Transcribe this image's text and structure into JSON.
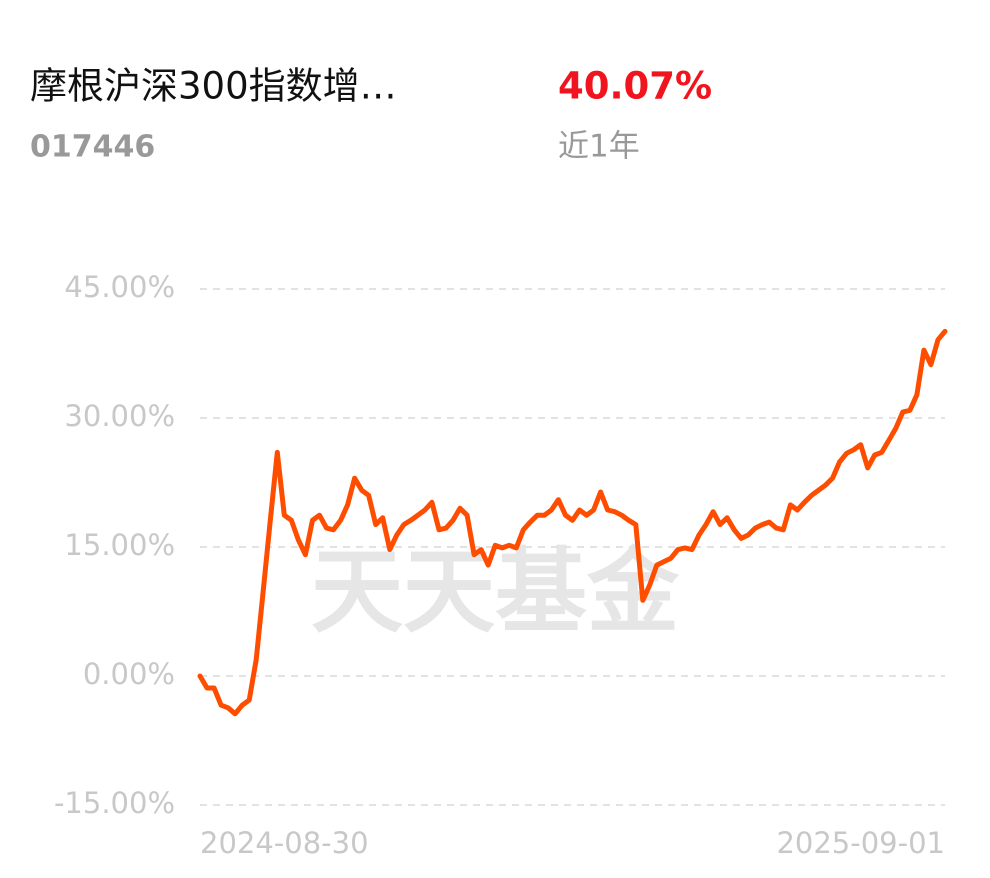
{
  "chart_data": {
    "type": "line",
    "title": "摩根沪深300指数增…",
    "code": "017446",
    "summary": {
      "value": 40.07,
      "label": "40.07%",
      "period": "近1年"
    },
    "watermark": "天天基金",
    "categories": [
      "2024-08-30",
      null,
      null,
      null,
      null,
      null,
      null,
      null,
      null,
      null,
      null,
      null,
      null,
      null,
      null,
      null,
      null,
      null,
      null,
      null,
      null,
      null,
      null,
      null,
      null,
      null,
      null,
      null,
      null,
      null,
      null,
      null,
      null,
      null,
      null,
      null,
      null,
      null,
      null,
      null,
      null,
      null,
      null,
      null,
      null,
      null,
      null,
      null,
      null,
      null,
      null,
      null,
      null,
      null,
      null,
      null,
      null,
      null,
      null,
      null,
      null,
      null,
      null,
      null,
      null,
      null,
      null,
      null,
      null,
      null,
      null,
      null,
      null,
      null,
      null,
      null,
      null,
      null,
      null,
      null,
      null,
      null,
      null,
      null,
      null,
      null,
      null,
      null,
      null,
      null,
      null,
      null,
      null,
      null,
      null,
      null,
      null,
      null,
      null,
      null,
      null,
      null,
      null,
      null,
      null,
      null,
      "2025-09-01"
    ],
    "series": [
      {
        "color": "#ff4d00",
        "values": [
          0,
          -1.4,
          -1.4,
          -3.4,
          -3.7,
          -4.4,
          -3.4,
          -2.8,
          1.9,
          10,
          18.1,
          26,
          18.7,
          18.1,
          15.8,
          14.1,
          18.1,
          18.7,
          17.2,
          17,
          18.1,
          19.9,
          23,
          21.6,
          21,
          17.6,
          18.4,
          14.7,
          16.4,
          17.6,
          18.1,
          18.7,
          19.3,
          20.2,
          17,
          17.2,
          18.1,
          19.5,
          18.7,
          14.1,
          14.7,
          12.9,
          15.2,
          14.9,
          15.2,
          14.9,
          17,
          17.9,
          18.7,
          18.7,
          19.3,
          20.5,
          18.7,
          18.1,
          19.3,
          18.7,
          19.3,
          21.4,
          19.3,
          19.1,
          18.7,
          18.1,
          17.6,
          8.8,
          10.6,
          12.9,
          13.3,
          13.7,
          14.7,
          14.9,
          14.7,
          16.4,
          17.6,
          19.1,
          17.6,
          18.4,
          17,
          16,
          16.4,
          17.2,
          17.6,
          17.9,
          17.2,
          17,
          19.9,
          19.3,
          20.2,
          21,
          21.6,
          22.2,
          23,
          24.9,
          25.9,
          26.3,
          26.9,
          24.2,
          25.7,
          26,
          27.4,
          28.8,
          30.7,
          30.9,
          32.7,
          37.9,
          36.2,
          39.1,
          40.07
        ]
      }
    ],
    "ylim": [
      -15,
      45
    ],
    "yticks": [
      {
        "value": 45,
        "label": "45.00%"
      },
      {
        "value": 30,
        "label": "30.00%"
      },
      {
        "value": 15,
        "label": "15.00%"
      },
      {
        "value": 0,
        "label": "0.00%"
      },
      {
        "value": -15,
        "label": "-15.00%"
      }
    ],
    "grid": true
  }
}
